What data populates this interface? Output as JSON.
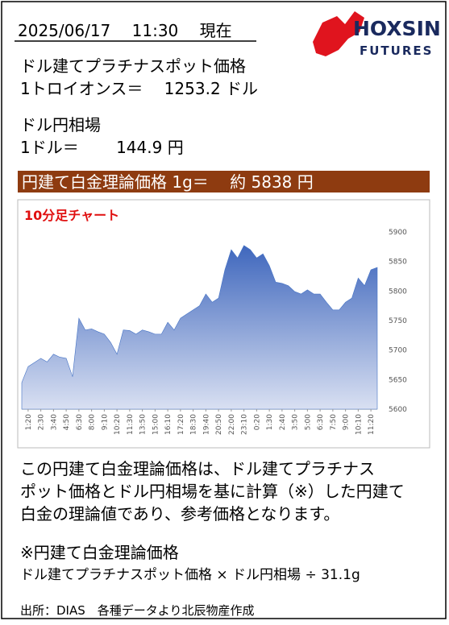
{
  "header": {
    "date": "2025/06/17　 11:30　 現在"
  },
  "logo": {
    "name": "HOXSIN",
    "sub": "FUTURES"
  },
  "platinum": {
    "label": "ドル建てプラチナスポット価格",
    "price": "1トロイオンス＝　 1253.2 ドル"
  },
  "usdjpy": {
    "label": "ドル円相場",
    "price": "1ドル＝　　 144.9 円"
  },
  "banner": "円建て白金理論価格 1g＝　 約 5838 円",
  "chart_data": {
    "type": "area",
    "title": "10分足チャート",
    "color": "#4472c4",
    "categories": [
      null,
      "1:20",
      null,
      "2:30",
      null,
      "3:40",
      null,
      "4:50",
      null,
      "6:30",
      null,
      "8:00",
      null,
      "9:10",
      null,
      "10:20",
      null,
      "11:30",
      null,
      "13:50",
      null,
      "15:00",
      null,
      "16:10",
      null,
      "17:20",
      null,
      "18:30",
      null,
      "19:40",
      null,
      "20:50",
      null,
      "22:00",
      null,
      "23:10",
      null,
      "0:20",
      null,
      "1:30",
      null,
      "2:40",
      null,
      "3:50",
      null,
      "5:00",
      null,
      "6:30",
      null,
      "7:50",
      null,
      "9:00",
      null,
      "10:10",
      null,
      "11:20",
      null
    ],
    "values": [
      5645,
      5672,
      5679,
      5686,
      5680,
      5693,
      5688,
      5686,
      5655,
      5754,
      5734,
      5736,
      5731,
      5727,
      5713,
      5693,
      5734,
      5733,
      5727,
      5734,
      5731,
      5727,
      5727,
      5747,
      5734,
      5754,
      5761,
      5768,
      5775,
      5795,
      5781,
      5788,
      5836,
      5870,
      5856,
      5877,
      5870,
      5856,
      5863,
      5843,
      5815,
      5813,
      5809,
      5799,
      5795,
      5802,
      5795,
      5795,
      5781,
      5768,
      5768,
      5781,
      5788,
      5822,
      5809,
      5836,
      5840
    ],
    "ylim": [
      5600,
      5900
    ],
    "yticks": [
      5600,
      5650,
      5700,
      5750,
      5800,
      5850,
      5900
    ],
    "grid": false
  },
  "notes": {
    "lines": [
      "この円建て白金理論価格は、ドル建てプラチナス",
      "ポット価格とドル円相場を基に計算（※）した円建て",
      "白金の理論値であり、参考価格となります。"
    ],
    "formula_title": "※円建て白金理論価格",
    "formula": "ドル建てプラチナスポット価格 × ドル円相場 ÷ 31.1g"
  },
  "source": "出所：DIAS　各種データより北辰物産作成"
}
